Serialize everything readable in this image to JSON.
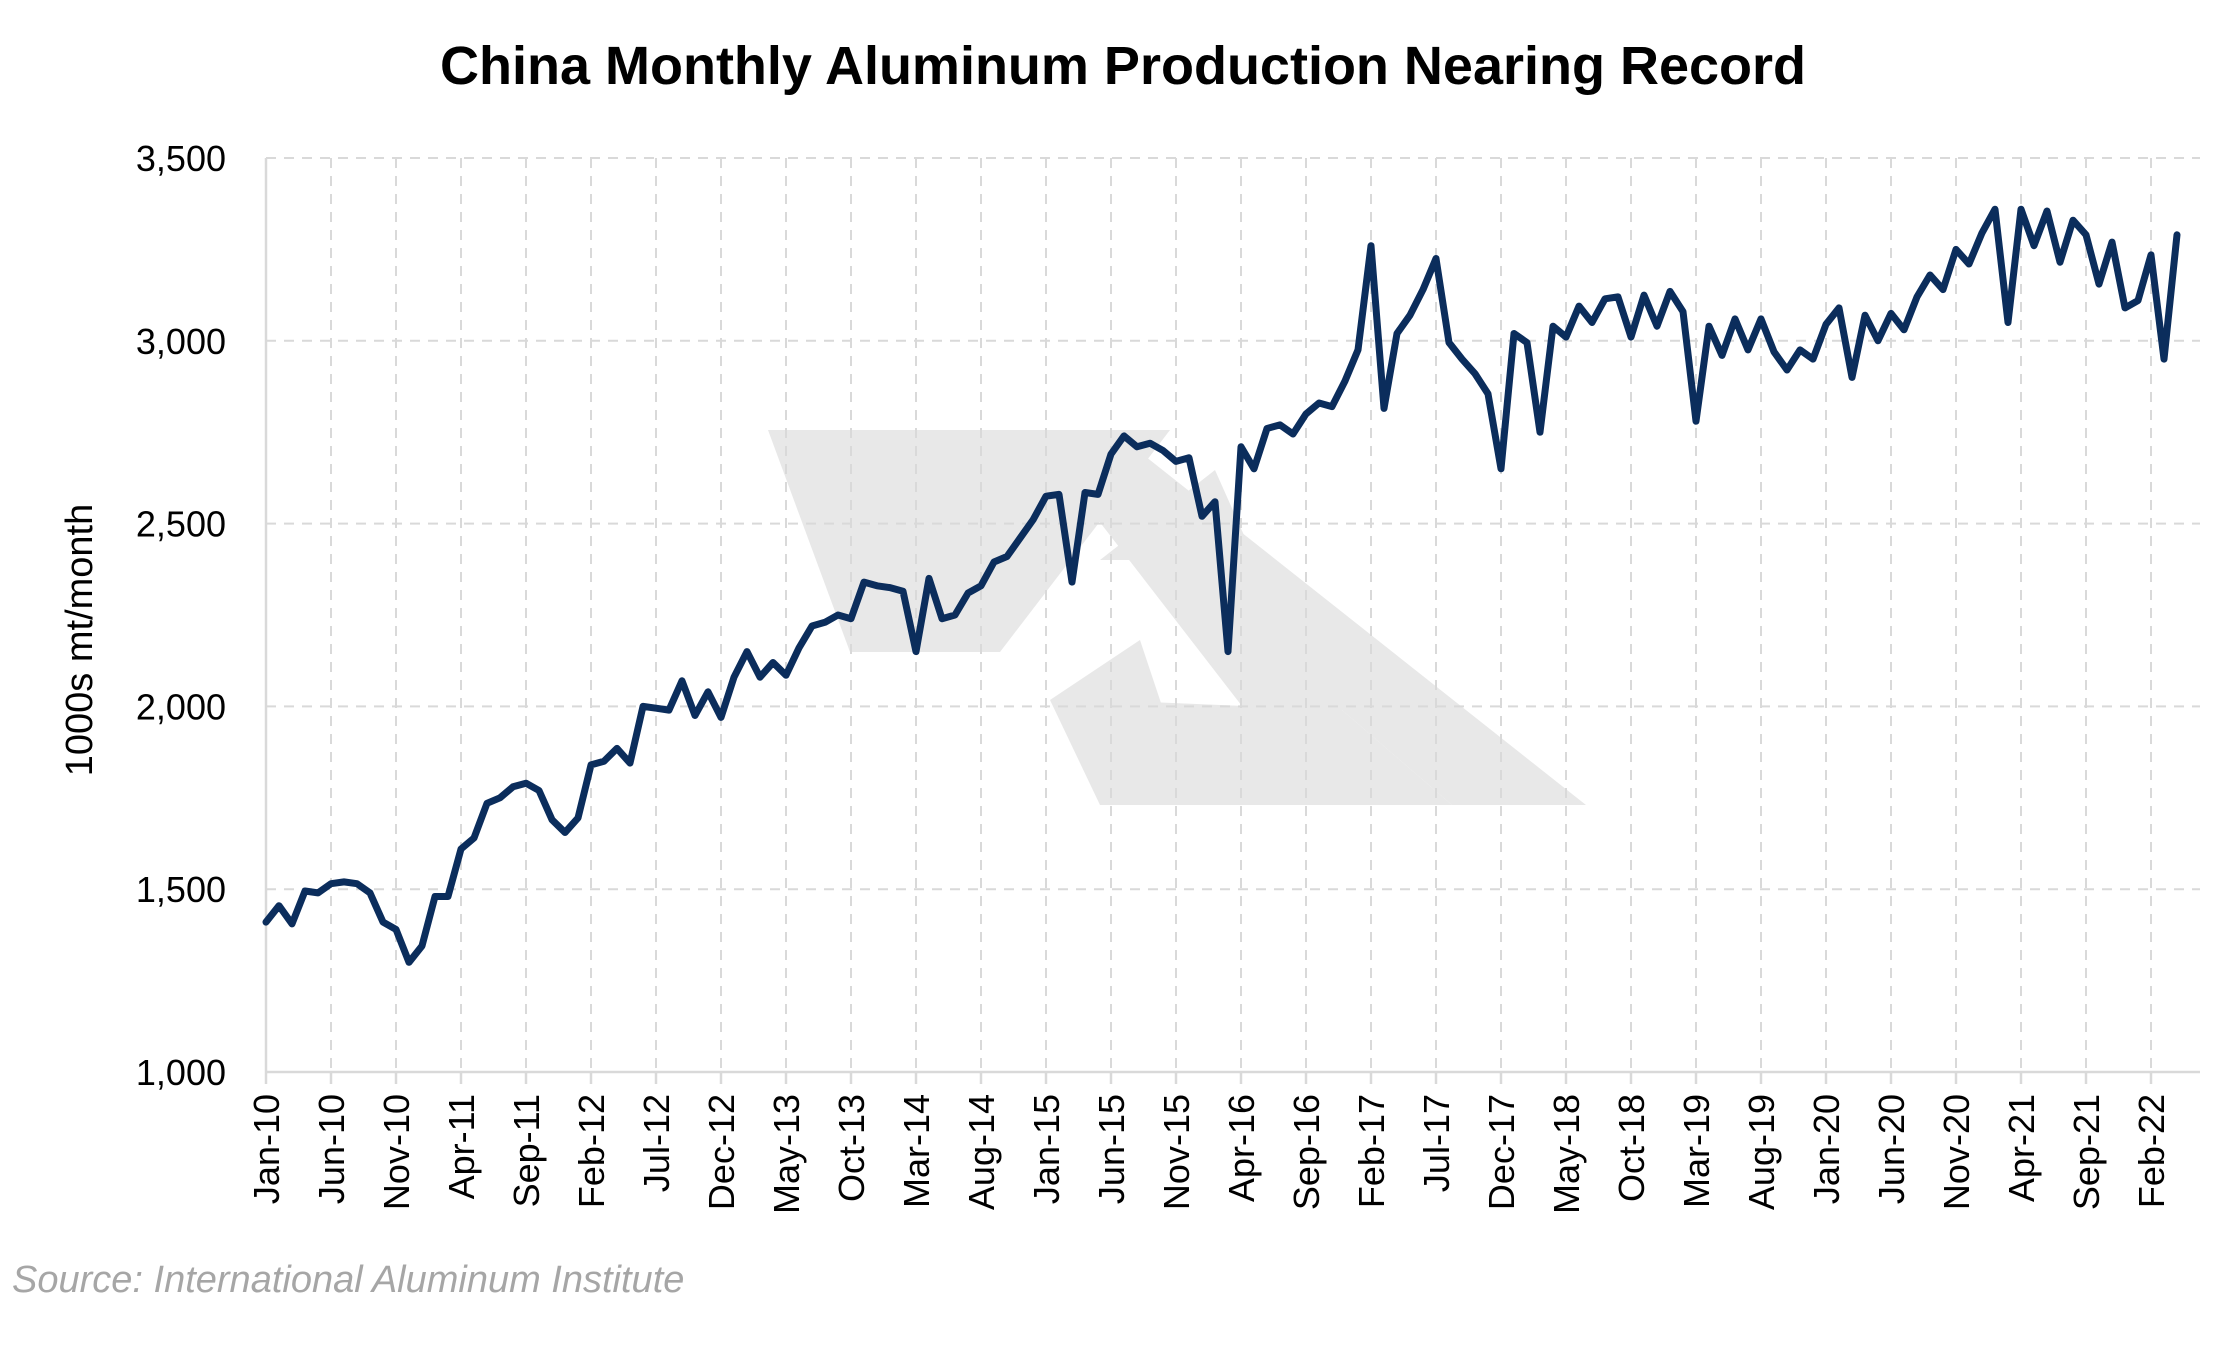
{
  "chart_data": {
    "type": "line",
    "title": "China Monthly Aluminum Production Nearing Record",
    "ylabel": "1000s mt/month",
    "xlabel": "",
    "ylim": [
      1000,
      3500
    ],
    "yticks": [
      1000,
      1500,
      2000,
      2500,
      3000,
      3500
    ],
    "ytick_labels": [
      "1,000",
      "1,500",
      "2,000",
      "2,500",
      "3,000",
      "3,500"
    ],
    "xtick_labels": [
      "Jan-10",
      "Jun-10",
      "Nov-10",
      "Apr-11",
      "Sep-11",
      "Feb-12",
      "Jul-12",
      "Dec-12",
      "May-13",
      "Oct-13",
      "Mar-14",
      "Aug-14",
      "Jan-15",
      "Jun-15",
      "Nov-15",
      "Apr-16",
      "Sep-16",
      "Feb-17",
      "Jul-17",
      "Dec-17",
      "May-18",
      "Oct-18",
      "Mar-19",
      "Aug-19",
      "Jan-20",
      "Jun-20",
      "Nov-20",
      "Apr-21",
      "Sep-21",
      "Feb-22"
    ],
    "xtick_step_months": 5,
    "grid": true,
    "line_color": "#0b2d5c",
    "series": [
      {
        "name": "",
        "start": "Jan-10",
        "values": [
          1410,
          1455,
          1405,
          1495,
          1490,
          1515,
          1520,
          1515,
          1490,
          1410,
          1390,
          1300,
          1345,
          1480,
          1480,
          1610,
          1640,
          1735,
          1750,
          1780,
          1790,
          1770,
          1690,
          1655,
          1695,
          1840,
          1850,
          1885,
          1845,
          2000,
          1995,
          1990,
          2070,
          1975,
          2040,
          1970,
          2080,
          2150,
          2080,
          2120,
          2085,
          2160,
          2220,
          2230,
          2250,
          2240,
          2340,
          2330,
          2325,
          2315,
          2150,
          2350,
          2240,
          2250,
          2310,
          2330,
          2395,
          2410,
          2460,
          2510,
          2575,
          2580,
          2340,
          2585,
          2580,
          2690,
          2740,
          2710,
          2720,
          2700,
          2670,
          2680,
          2520,
          2560,
          2150,
          2710,
          2650,
          2760,
          2770,
          2745,
          2800,
          2830,
          2820,
          2890,
          2975,
          3260,
          2815,
          3020,
          3070,
          3140,
          3225,
          2995,
          2950,
          2910,
          2855,
          2650,
          3020,
          2995,
          2750,
          3040,
          3010,
          3095,
          3050,
          3115,
          3120,
          3010,
          3125,
          3040,
          3135,
          3080,
          2780,
          3040,
          2960,
          3060,
          2975,
          3060,
          2970,
          2920,
          2975,
          2950,
          3045,
          3090,
          2900,
          3070,
          3000,
          3075,
          3030,
          3120,
          3180,
          3140,
          3250,
          3210,
          3295,
          3360,
          3050,
          3360,
          3260,
          3355,
          3215,
          3330,
          3290,
          3155,
          3270,
          3090,
          3110,
          3235,
          2950,
          3290
        ]
      }
    ],
    "source": "Source: International Aluminum Institute"
  }
}
